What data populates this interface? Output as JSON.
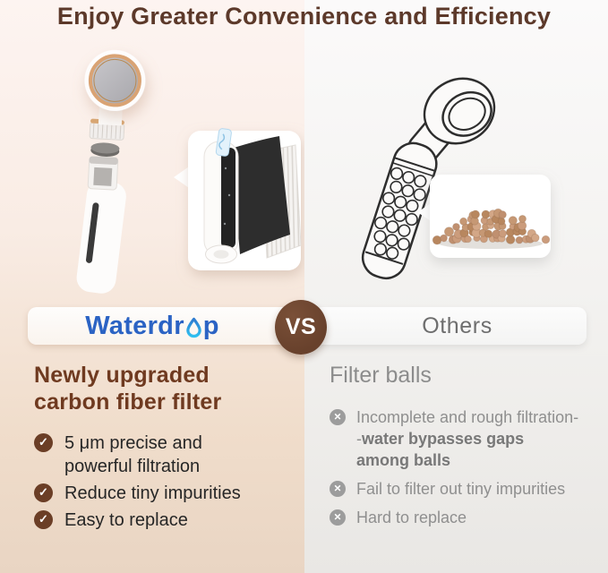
{
  "title": "Enjoy Greater Convenience and Efficiency",
  "comparison": {
    "brand_prefix": "Waterdr",
    "brand_suffix": "p",
    "vs": "VS",
    "competitor": "Others"
  },
  "waterdrop_column": {
    "heading": "Newly upgraded carbon fiber filter",
    "benefits": [
      "5 μm precise and powerful filtration",
      "Reduce tiny impurities",
      "Easy to replace"
    ]
  },
  "others_column": {
    "heading": "Filter balls",
    "drawbacks": [
      {
        "text": "Incomplete and rough filtration--",
        "bold": "water bypasses gaps among balls"
      },
      {
        "text": "Fail to filter out tiny impurities",
        "bold": ""
      },
      {
        "text": "Hard to replace",
        "bold": ""
      }
    ]
  },
  "icons": {
    "check_glyph": "✓",
    "cross_glyph": "✕"
  },
  "colors": {
    "title_brown": "#5c392a",
    "heading_brown": "#6f3a20",
    "vs_badge_brown": "#6a432e",
    "brand_blue": "#2b63c4",
    "drop_cyan": "#35bdee",
    "check_brown": "#6b3e26",
    "cross_gray": "#9c9c9c",
    "left_panel_bottom": "#e9d5c3",
    "right_panel_bottom": "#e9e7e4"
  }
}
